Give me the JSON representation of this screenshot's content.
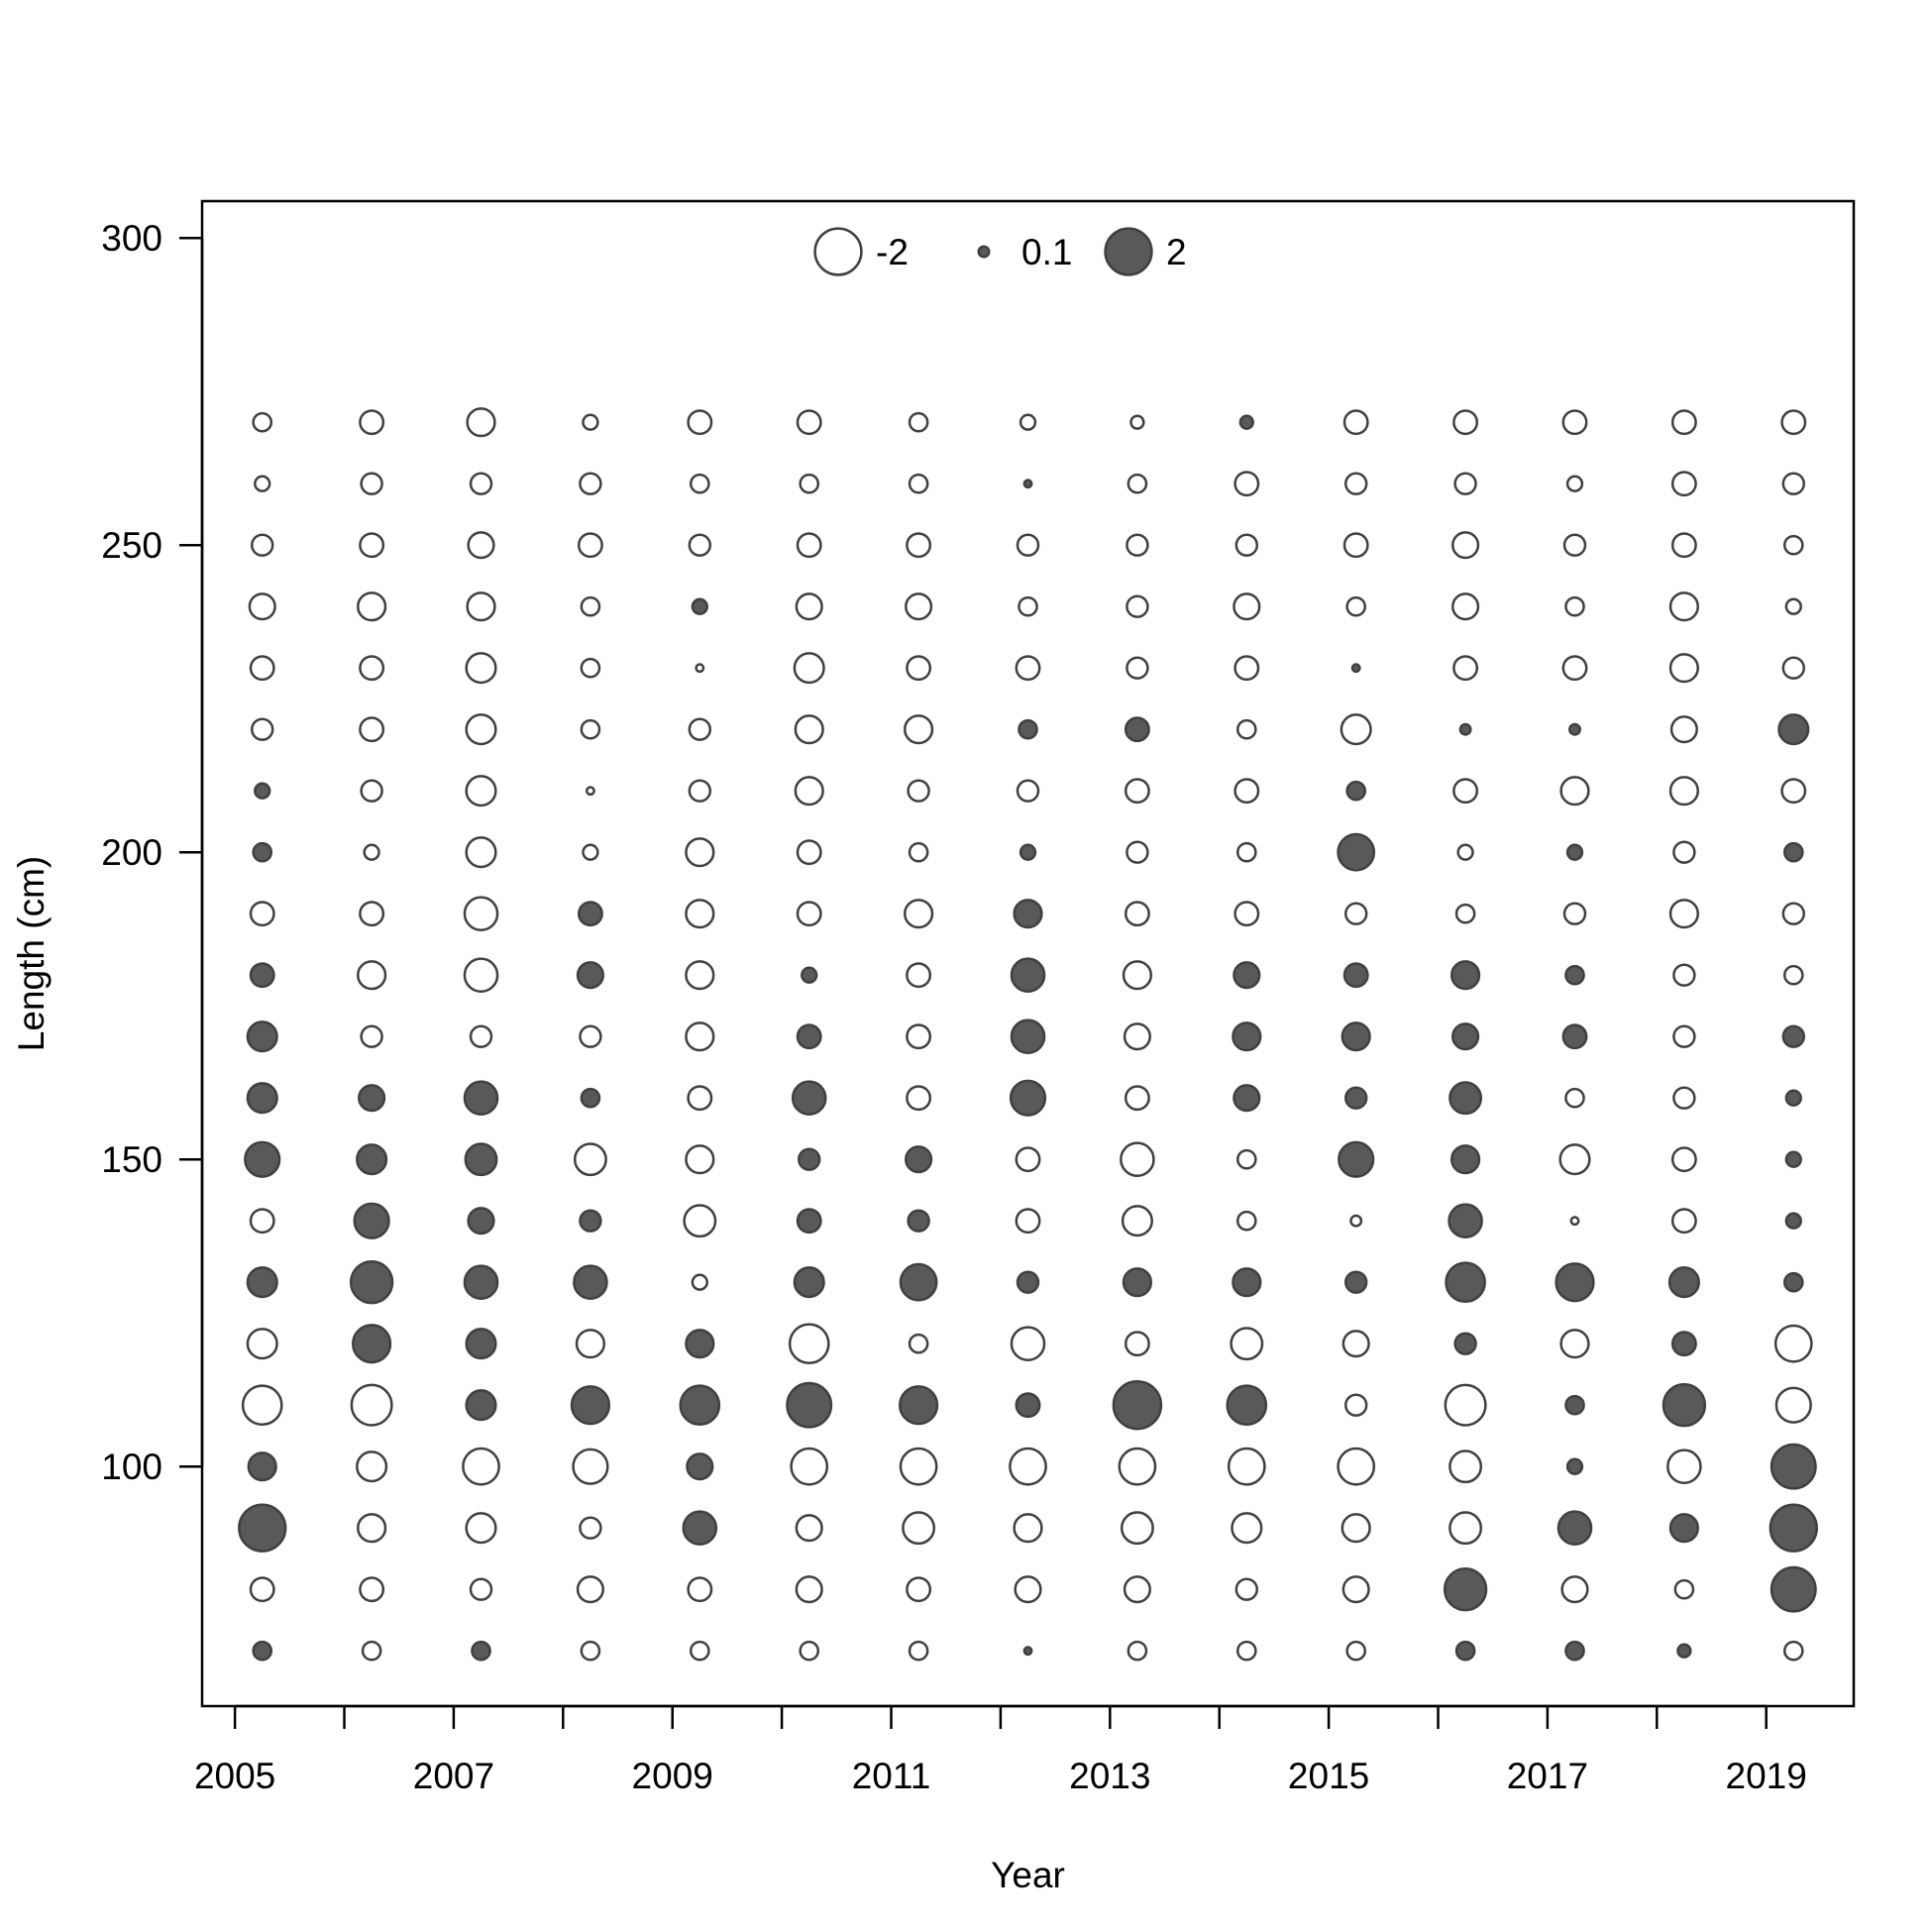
{
  "chart_data": {
    "type": "bubble",
    "xlabel": "Year",
    "ylabel": "Length (cm)",
    "x_ticks": [
      "2005",
      "2007",
      "2009",
      "2011",
      "2013",
      "2015",
      "2017",
      "2019"
    ],
    "y_ticks": [
      "100",
      "150",
      "200",
      "250",
      "300"
    ],
    "xlim": [
      2004.7,
      2019.8
    ],
    "ylim": [
      61,
      306
    ],
    "legend": {
      "placement": "top-center",
      "entries": [
        {
          "label": "-2",
          "value": -2
        },
        {
          "label": "0.1",
          "value": 0.1
        },
        {
          "label": "2",
          "value": 2
        }
      ]
    },
    "colors": {
      "positive": "#595959",
      "negative": "#ffffff",
      "edge": "#404040"
    },
    "x": [
      2005.25,
      2006.25,
      2007.25,
      2008.25,
      2009.25,
      2010.25,
      2011.25,
      2012.25,
      2013.25,
      2014.25,
      2015.25,
      2016.25,
      2017.25,
      2018.25,
      2019.25
    ],
    "lengths": [
      70,
      80,
      90,
      100,
      110,
      120,
      130,
      140,
      150,
      160,
      170,
      180,
      190,
      200,
      210,
      220,
      230,
      240,
      250,
      260,
      270
    ],
    "residuals": [
      [
        0.3,
        -0.3,
        0.3,
        -0.3,
        -0.3,
        -0.3,
        -0.3,
        0.05,
        -0.3,
        -0.3,
        -0.3,
        0.3,
        0.3,
        0.15,
        -0.3
      ],
      [
        -0.5,
        -0.5,
        -0.4,
        -0.6,
        -0.5,
        -0.6,
        -0.5,
        -0.6,
        -0.6,
        -0.4,
        -0.6,
        1.6,
        -0.6,
        -0.3,
        1.8
      ],
      [
        2.0,
        -0.7,
        -0.8,
        -0.4,
        1.0,
        -0.6,
        -0.9,
        -0.7,
        -0.9,
        -0.8,
        -0.7,
        -0.9,
        1.0,
        0.7,
        2.0
      ],
      [
        0.7,
        -0.8,
        -1.2,
        -1.1,
        0.6,
        -1.2,
        -1.2,
        -1.2,
        -1.2,
        -1.2,
        -1.2,
        -0.9,
        0.2,
        -1.0,
        1.8
      ],
      [
        -1.4,
        -1.5,
        0.8,
        1.3,
        1.4,
        1.8,
        1.3,
        0.5,
        2.1,
        1.4,
        -0.4,
        -1.5,
        0.3,
        1.6,
        -1.1
      ],
      [
        -0.8,
        1.3,
        0.8,
        -0.7,
        0.7,
        -1.4,
        -0.3,
        -1.0,
        -0.5,
        -0.9,
        -0.6,
        0.4,
        -0.7,
        0.5,
        -1.2
      ],
      [
        0.8,
        1.6,
        1.0,
        1.0,
        -0.2,
        0.8,
        1.2,
        0.4,
        0.7,
        0.7,
        0.4,
        1.4,
        1.3,
        0.8,
        0.3
      ],
      [
        -0.5,
        1.1,
        0.6,
        0.4,
        -0.9,
        0.5,
        0.4,
        -0.5,
        -0.8,
        -0.3,
        -0.1,
        1.0,
        -0.05,
        -0.5,
        0.2
      ],
      [
        1.1,
        0.8,
        0.9,
        -0.9,
        -0.7,
        0.4,
        0.6,
        -0.5,
        -1.0,
        -0.3,
        1.1,
        0.7,
        -0.8,
        -0.5,
        0.2
      ],
      [
        0.8,
        0.6,
        1.0,
        0.3,
        -0.5,
        1.0,
        -0.5,
        1.1,
        -0.5,
        0.6,
        0.4,
        0.9,
        -0.3,
        -0.4,
        0.2
      ],
      [
        0.8,
        -0.4,
        -0.4,
        -0.4,
        -0.7,
        0.5,
        -0.5,
        1.0,
        -0.6,
        0.7,
        0.7,
        0.6,
        0.5,
        -0.4,
        0.4
      ],
      [
        0.5,
        -0.7,
        -1.0,
        0.6,
        -0.7,
        0.2,
        -0.5,
        1.0,
        -0.7,
        0.6,
        0.5,
        0.7,
        0.3,
        -0.4,
        -0.3
      ],
      [
        -0.5,
        -0.5,
        -1.0,
        0.5,
        -0.7,
        -0.5,
        -0.7,
        0.7,
        -0.5,
        -0.5,
        -0.4,
        -0.3,
        -0.4,
        -0.7,
        -0.4
      ],
      [
        0.3,
        -0.2,
        -0.8,
        -0.2,
        -0.7,
        -0.5,
        -0.3,
        0.2,
        -0.4,
        -0.3,
        1.2,
        -0.2,
        0.2,
        -0.4,
        0.3
      ],
      [
        0.2,
        -0.4,
        -0.8,
        -0.05,
        -0.4,
        -0.7,
        -0.4,
        -0.4,
        -0.5,
        -0.5,
        0.3,
        -0.5,
        -0.7,
        -0.7,
        -0.5
      ],
      [
        -0.4,
        -0.5,
        -0.8,
        -0.3,
        -0.4,
        -0.7,
        -0.7,
        0.3,
        0.5,
        -0.3,
        -0.8,
        0.1,
        0.1,
        -0.6,
        0.8
      ],
      [
        -0.5,
        -0.5,
        -0.8,
        -0.3,
        -0.05,
        -0.8,
        -0.5,
        -0.5,
        -0.4,
        -0.5,
        0.05,
        -0.5,
        -0.5,
        -0.7,
        -0.4
      ],
      [
        -0.6,
        -0.7,
        -0.7,
        -0.3,
        0.2,
        -0.6,
        -0.6,
        -0.3,
        -0.4,
        -0.6,
        -0.3,
        -0.6,
        -0.3,
        -0.7,
        -0.2
      ],
      [
        -0.4,
        -0.5,
        -0.6,
        -0.5,
        -0.4,
        -0.5,
        -0.5,
        -0.4,
        -0.4,
        -0.4,
        -0.5,
        -0.6,
        -0.4,
        -0.5,
        -0.3
      ],
      [
        -0.2,
        -0.4,
        -0.4,
        -0.4,
        -0.3,
        -0.3,
        -0.3,
        0.05,
        -0.3,
        -0.5,
        -0.4,
        -0.4,
        -0.2,
        -0.5,
        -0.4
      ],
      [
        -0.3,
        -0.5,
        -0.7,
        -0.2,
        -0.5,
        -0.5,
        -0.3,
        -0.2,
        -0.15,
        0.15,
        -0.5,
        -0.5,
        -0.5,
        -0.5,
        -0.5
      ]
    ]
  }
}
